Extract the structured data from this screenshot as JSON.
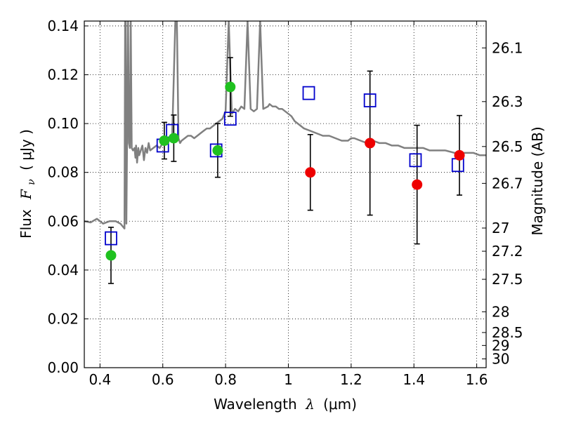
{
  "chart_data": {
    "type": "scatter",
    "xlabel": {
      "text": "Wavelength",
      "symbol": "λ",
      "unit": "(μm)"
    },
    "ylabel": {
      "text": "Flux",
      "symbol": "F",
      "subscript": "ν",
      "unit": "( μJy )"
    },
    "y2label": "Magnitude (AB)",
    "xlim": [
      0.35,
      1.63
    ],
    "ylim": [
      0.0,
      0.142
    ],
    "xticks": [
      0.4,
      0.6,
      0.8,
      1.0,
      1.2,
      1.4,
      1.6
    ],
    "xtick_labels": [
      "0.4",
      "0.6",
      "0.8",
      "1",
      "1.2",
      "1.4",
      "1.6"
    ],
    "yticks": [
      0.0,
      0.02,
      0.04,
      0.06,
      0.08,
      0.1,
      0.12,
      0.14
    ],
    "ytick_labels": [
      "0.00",
      "0.02",
      "0.04",
      "0.06",
      "0.08",
      "0.10",
      "0.12",
      "0.14"
    ],
    "y2ticks": [
      {
        "label": "26.1",
        "flux": 0.131
      },
      {
        "label": "26.3",
        "flux": 0.109
      },
      {
        "label": "26.5",
        "flux": 0.0906
      },
      {
        "label": "26.7",
        "flux": 0.0755
      },
      {
        "label": "27",
        "flux": 0.0572
      },
      {
        "label": "27.2",
        "flux": 0.0477
      },
      {
        "label": "27.5",
        "flux": 0.0362
      },
      {
        "label": "28",
        "flux": 0.0229
      },
      {
        "label": "28.5",
        "flux": 0.0144
      },
      {
        "label": "29",
        "flux": 0.0091
      },
      {
        "label": "30",
        "flux": 0.0036
      }
    ],
    "grid": true,
    "colors": {
      "spectrum": "#808080",
      "green": "#1fc11f",
      "red": "#ee0000",
      "model": "#0000cc",
      "errorbar": "#000000"
    },
    "series": [
      {
        "kind": "spectrum",
        "x": [
          0.35,
          0.37,
          0.39,
          0.41,
          0.43,
          0.45,
          0.465,
          0.478,
          0.48,
          0.482,
          0.484,
          0.486,
          0.4895,
          0.492,
          0.495,
          0.498,
          0.501,
          0.505,
          0.51,
          0.513,
          0.515,
          0.518,
          0.522,
          0.525,
          0.53,
          0.535,
          0.54,
          0.545,
          0.55,
          0.555,
          0.56,
          0.57,
          0.58,
          0.59,
          0.6,
          0.61,
          0.62,
          0.63,
          0.64,
          0.645,
          0.65,
          0.655,
          0.66,
          0.67,
          0.68,
          0.69,
          0.7,
          0.71,
          0.72,
          0.73,
          0.74,
          0.75,
          0.76,
          0.77,
          0.78,
          0.79,
          0.8,
          0.81,
          0.82,
          0.83,
          0.84,
          0.85,
          0.86,
          0.87,
          0.88,
          0.89,
          0.9,
          0.91,
          0.92,
          0.935,
          0.94,
          0.95,
          0.96,
          0.97,
          0.98,
          0.99,
          1.0,
          1.01,
          1.02,
          1.03,
          1.05,
          1.07,
          1.09,
          1.11,
          1.13,
          1.15,
          1.17,
          1.19,
          1.2,
          1.21,
          1.23,
          1.25,
          1.27,
          1.29,
          1.31,
          1.33,
          1.35,
          1.37,
          1.39,
          1.41,
          1.43,
          1.45,
          1.47,
          1.5,
          1.53,
          1.56,
          1.59,
          1.61,
          1.63
        ],
        "y": [
          0.06,
          0.0595,
          0.061,
          0.059,
          0.06,
          0.06,
          0.059,
          0.057,
          0.142,
          0.142,
          0.059,
          0.09,
          0.142,
          0.092,
          0.09,
          0.142,
          0.09,
          0.089,
          0.09,
          0.086,
          0.091,
          0.084,
          0.09,
          0.087,
          0.089,
          0.091,
          0.085,
          0.09,
          0.088,
          0.092,
          0.089,
          0.09,
          0.091,
          0.09,
          0.092,
          0.093,
          0.094,
          0.095,
          0.142,
          0.142,
          0.094,
          0.092,
          0.093,
          0.094,
          0.095,
          0.095,
          0.094,
          0.095,
          0.096,
          0.097,
          0.098,
          0.098,
          0.099,
          0.1,
          0.101,
          0.102,
          0.105,
          0.142,
          0.104,
          0.106,
          0.105,
          0.107,
          0.106,
          0.142,
          0.106,
          0.105,
          0.106,
          0.142,
          0.106,
          0.107,
          0.108,
          0.107,
          0.107,
          0.106,
          0.106,
          0.105,
          0.104,
          0.103,
          0.101,
          0.1,
          0.098,
          0.097,
          0.096,
          0.095,
          0.095,
          0.094,
          0.093,
          0.093,
          0.094,
          0.094,
          0.093,
          0.092,
          0.093,
          0.092,
          0.092,
          0.091,
          0.091,
          0.09,
          0.09,
          0.09,
          0.09,
          0.089,
          0.089,
          0.089,
          0.088,
          0.088,
          0.088,
          0.087,
          0.087
        ]
      },
      {
        "kind": "observed-green",
        "points": [
          {
            "x": 0.435,
            "y": 0.046,
            "err": 0.0115
          },
          {
            "x": 0.605,
            "y": 0.093,
            "err": 0.0075
          },
          {
            "x": 0.635,
            "y": 0.094,
            "err": 0.0095
          },
          {
            "x": 0.775,
            "y": 0.089,
            "err": 0.011
          },
          {
            "x": 0.815,
            "y": 0.115,
            "err": 0.012
          }
        ]
      },
      {
        "kind": "observed-red",
        "points": [
          {
            "x": 1.07,
            "y": 0.08,
            "err": 0.0155
          },
          {
            "x": 1.26,
            "y": 0.092,
            "err": 0.0295
          },
          {
            "x": 1.41,
            "y": 0.075,
            "err": 0.0243
          },
          {
            "x": 1.545,
            "y": 0.087,
            "err": 0.0163
          }
        ]
      },
      {
        "kind": "model-squares",
        "points": [
          {
            "x": 0.435,
            "y": 0.053
          },
          {
            "x": 0.6,
            "y": 0.091
          },
          {
            "x": 0.63,
            "y": 0.097
          },
          {
            "x": 0.77,
            "y": 0.089
          },
          {
            "x": 0.815,
            "y": 0.102
          },
          {
            "x": 1.065,
            "y": 0.1125
          },
          {
            "x": 1.26,
            "y": 0.1095
          },
          {
            "x": 1.405,
            "y": 0.085
          },
          {
            "x": 1.54,
            "y": 0.083
          }
        ]
      }
    ]
  }
}
